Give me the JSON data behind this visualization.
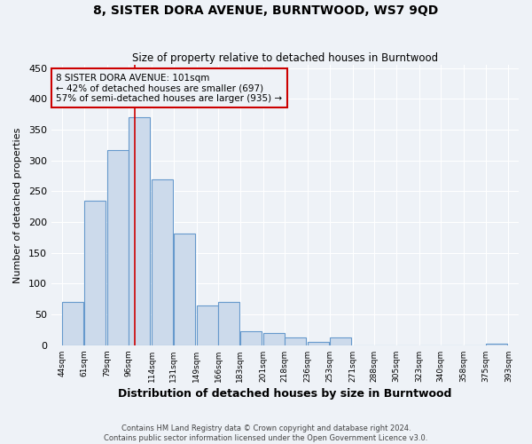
{
  "title": "8, SISTER DORA AVENUE, BURNTWOOD, WS7 9QD",
  "subtitle": "Size of property relative to detached houses in Burntwood",
  "xlabel": "Distribution of detached houses by size in Burntwood",
  "ylabel": "Number of detached properties",
  "bar_left_edges": [
    44,
    61,
    79,
    96,
    114,
    131,
    149,
    166,
    183,
    201,
    218,
    236,
    253,
    271,
    288,
    305,
    323,
    340,
    358,
    375
  ],
  "bar_heights": [
    70,
    235,
    317,
    370,
    270,
    182,
    65,
    70,
    23,
    20,
    12,
    5,
    12,
    0,
    0,
    0,
    0,
    0,
    0,
    3
  ],
  "bin_width": 17,
  "xlim_left": 35.5,
  "xlim_right": 401,
  "ylim": [
    0,
    455
  ],
  "yticks": [
    0,
    50,
    100,
    150,
    200,
    250,
    300,
    350,
    400,
    450
  ],
  "xtick_labels": [
    "44sqm",
    "61sqm",
    "79sqm",
    "96sqm",
    "114sqm",
    "131sqm",
    "149sqm",
    "166sqm",
    "183sqm",
    "201sqm",
    "218sqm",
    "236sqm",
    "253sqm",
    "271sqm",
    "288sqm",
    "305sqm",
    "323sqm",
    "340sqm",
    "358sqm",
    "375sqm",
    "393sqm"
  ],
  "xtick_positions": [
    44,
    61,
    79,
    96,
    114,
    131,
    149,
    166,
    183,
    201,
    218,
    236,
    253,
    271,
    288,
    305,
    323,
    340,
    358,
    375,
    393
  ],
  "bar_color": "#ccdaeb",
  "bar_edge_color": "#6699cc",
  "property_line_x": 101,
  "property_line_color": "#cc0000",
  "annotation_title": "8 SISTER DORA AVENUE: 101sqm",
  "annotation_line1": "← 42% of detached houses are smaller (697)",
  "annotation_line2": "57% of semi-detached houses are larger (935) →",
  "annotation_box_color": "#cc0000",
  "footer_line1": "Contains HM Land Registry data © Crown copyright and database right 2024.",
  "footer_line2": "Contains public sector information licensed under the Open Government Licence v3.0.",
  "bg_color": "#eef2f7",
  "grid_color": "#ffffff",
  "figsize": [
    6.0,
    5.0
  ],
  "dpi": 100
}
